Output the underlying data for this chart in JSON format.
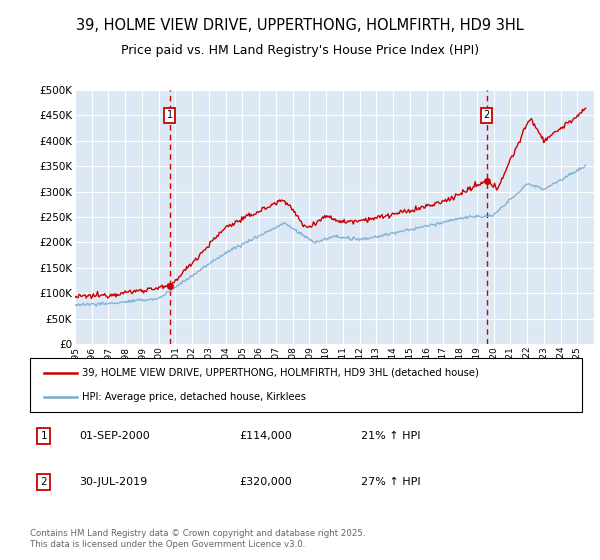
{
  "title": "39, HOLME VIEW DRIVE, UPPERTHONG, HOLMFIRTH, HD9 3HL",
  "subtitle": "Price paid vs. HM Land Registry's House Price Index (HPI)",
  "title_fontsize": 10.5,
  "subtitle_fontsize": 9,
  "legend_line1": "39, HOLME VIEW DRIVE, UPPERTHONG, HOLMFIRTH, HD9 3HL (detached house)",
  "legend_line2": "HPI: Average price, detached house, Kirklees",
  "annotation1_label": "1",
  "annotation1_date": "01-SEP-2000",
  "annotation1_price": "£114,000",
  "annotation1_hpi": "21% ↑ HPI",
  "annotation2_label": "2",
  "annotation2_date": "30-JUL-2019",
  "annotation2_price": "£320,000",
  "annotation2_hpi": "27% ↑ HPI",
  "footer": "Contains HM Land Registry data © Crown copyright and database right 2025.\nThis data is licensed under the Open Government Licence v3.0.",
  "red_color": "#cc0000",
  "blue_color": "#7aadcf",
  "background_color": "#ffffff",
  "plot_bg_color": "#dce9f5",
  "grid_color": "#ffffff",
  "annotation_box_color": "#cc0000",
  "dashed_line_color": "#cc0000",
  "ylim": [
    0,
    500000
  ],
  "yticks": [
    0,
    50000,
    100000,
    150000,
    200000,
    250000,
    300000,
    350000,
    400000,
    450000,
    500000
  ],
  "year_start": 1995,
  "year_end": 2025,
  "sale1_year": 2000.67,
  "sale1_price": 114000,
  "sale2_year": 2019.58,
  "sale2_price": 320000
}
